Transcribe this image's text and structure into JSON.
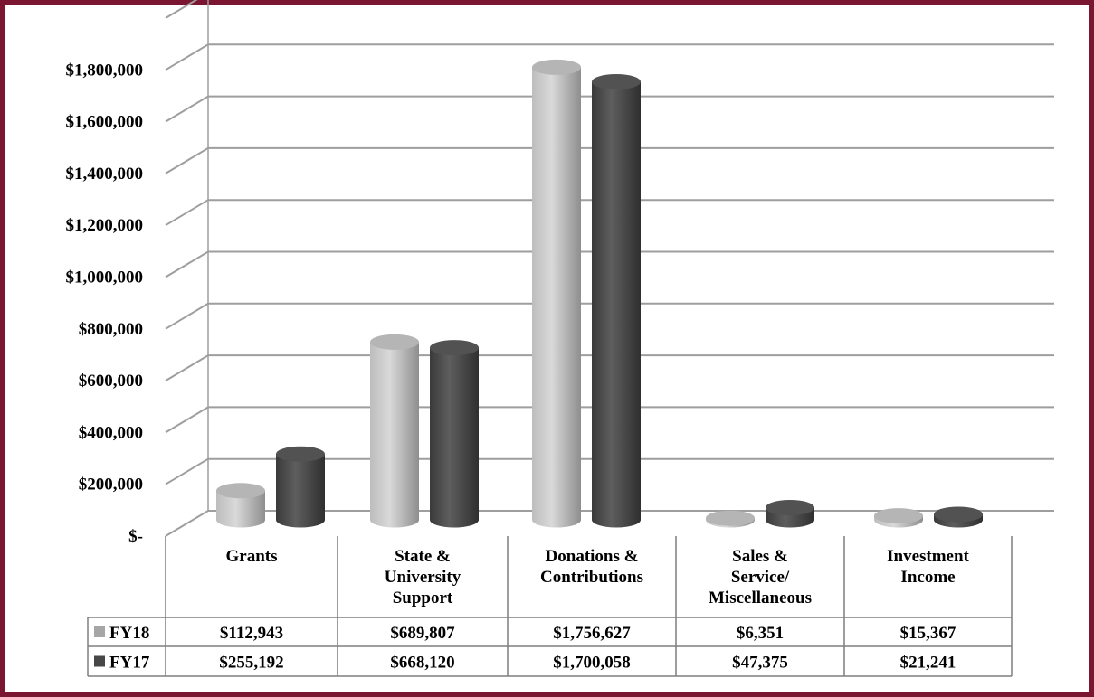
{
  "frame_color": "#7a1632",
  "chart_data": {
    "type": "bar",
    "style": "3d-cylinder",
    "categories": [
      [
        "Grants"
      ],
      [
        "State &",
        "University",
        "Support"
      ],
      [
        "Donations &",
        "Contributions"
      ],
      [
        "Sales &",
        "Service/",
        "Miscellaneous"
      ],
      [
        "Investment",
        "Income"
      ]
    ],
    "series": [
      {
        "name": "FY18",
        "color": "#a6a6a6",
        "values": [
          112943,
          689807,
          1756627,
          6351,
          15367
        ],
        "labels": [
          "$112,943",
          "$689,807",
          "$1,756,627",
          "$6,351",
          "$15,367"
        ]
      },
      {
        "name": "FY17",
        "color": "#474747",
        "values": [
          255192,
          668120,
          1700058,
          47375,
          21241
        ],
        "labels": [
          "$255,192",
          "$668,120",
          "$1,700,058",
          "$47,375",
          "$21,241"
        ]
      }
    ],
    "y_ticks": [
      {
        "value": 0,
        "label": "$-"
      },
      {
        "value": 200000,
        "label": "$200,000"
      },
      {
        "value": 400000,
        "label": "$400,000"
      },
      {
        "value": 600000,
        "label": "$600,000"
      },
      {
        "value": 800000,
        "label": "$800,000"
      },
      {
        "value": 1000000,
        "label": "$1,000,000"
      },
      {
        "value": 1200000,
        "label": "$1,200,000"
      },
      {
        "value": 1400000,
        "label": "$1,400,000"
      },
      {
        "value": 1600000,
        "label": "$1,600,000"
      },
      {
        "value": 1800000,
        "label": "$1,800,000"
      }
    ],
    "ylim": [
      0,
      2000000
    ],
    "grid": true,
    "legend": "data-table"
  }
}
